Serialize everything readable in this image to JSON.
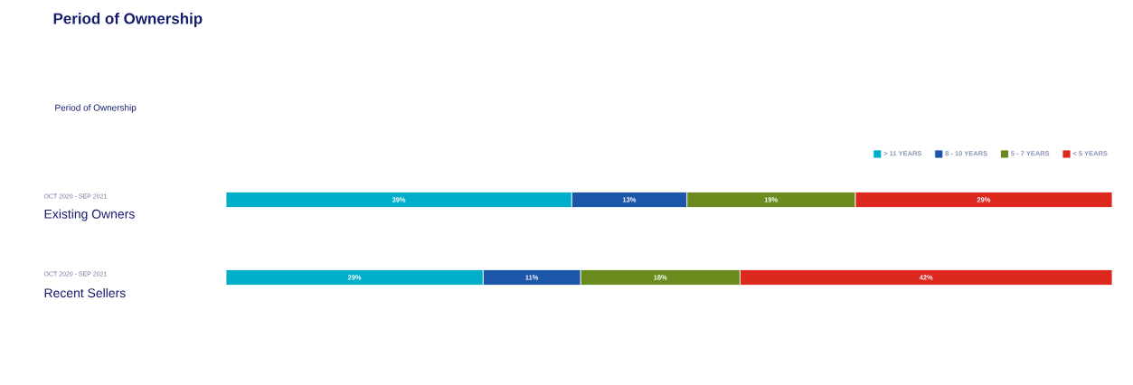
{
  "chart_data": {
    "type": "bar",
    "orientation": "horizontal",
    "stacked": true,
    "title": "Period of Ownership",
    "subtitle": "Period of Ownership",
    "categories": [
      "Existing Owners",
      "Recent Sellers"
    ],
    "annotations": [
      "OCT 2020 - SEP 2021",
      "OCT 2020 - SEP 2021"
    ],
    "tick_labels": "y",
    "legend": "top right",
    "series": [
      {
        "name": "> 11 YEARS",
        "color": "#00aec9",
        "values": [
          39,
          29
        ],
        "value_labels": [
          "39%",
          "29%"
        ]
      },
      {
        "name": "8 - 10 YEARS",
        "color": "#1b56a8",
        "values": [
          13,
          11
        ],
        "value_labels": [
          "13%",
          "11%"
        ]
      },
      {
        "name": "5 - 7 YEARS",
        "color": "#6a8c1f",
        "values": [
          19,
          18
        ],
        "value_labels": [
          "19%",
          "18%"
        ]
      },
      {
        "name": "< 5 YEARS",
        "color": "#dc281e",
        "values": [
          29,
          42
        ],
        "value_labels": [
          "29%",
          "42%"
        ]
      }
    ]
  }
}
